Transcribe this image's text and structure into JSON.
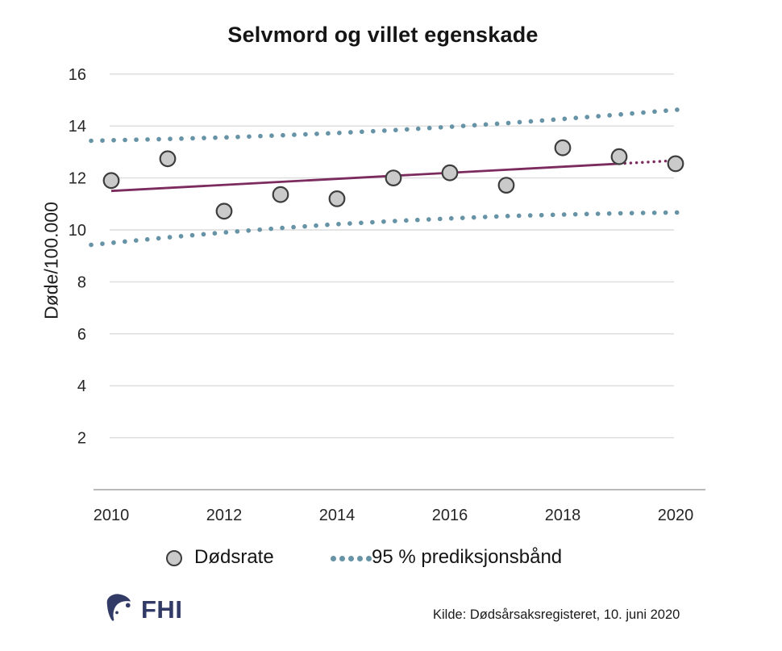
{
  "title": "Selvmord og villet egenskade",
  "legend": {
    "dodsrate_label": "Dødsrate",
    "band_label": "95 % prediksjonsbånd"
  },
  "footer": {
    "logo_text": "FHI",
    "source_text": "Kilde: Dødsårsaksregisteret, 10. juni 2020"
  },
  "colors": {
    "band_blue": "#6793A6",
    "trend_purple": "#7C2B5F",
    "point_fill": "#CACACA",
    "point_stroke": "#3D3D3D",
    "gridline": "#DCDCDC",
    "axis_line": "#B8B8B8",
    "tick_text": "#262626",
    "logo_navy": "#323A66"
  },
  "chart_data": {
    "type": "scatter",
    "title": "Selvmord og villet egenskade",
    "ylabel": "Døde/100.000",
    "xlabel": "",
    "xlim": [
      2009.6,
      2020.1
    ],
    "ylim": [
      0,
      16.6
    ],
    "grid": "horizontal-only",
    "legend_position": "bottom",
    "x_ticks": [
      2010,
      2012,
      2014,
      2016,
      2018,
      2020
    ],
    "y_ticks": [
      2,
      4,
      6,
      8,
      10,
      12,
      14,
      16
    ],
    "years": [
      2010,
      2011,
      2012,
      2013,
      2014,
      2015,
      2016,
      2017,
      2018,
      2019,
      2020
    ],
    "series": [
      {
        "name": "Dødsrate",
        "type": "points",
        "values": [
          11.9,
          12.74,
          10.72,
          11.36,
          11.2,
          12.0,
          12.2,
          11.72,
          13.16,
          12.82,
          12.55
        ]
      },
      {
        "name": "Trendlinje",
        "type": "solid-line",
        "start_year": 2010,
        "start_value": 11.5,
        "end_year": 2019,
        "end_value": 12.55
      },
      {
        "name": "Trend projeksjon",
        "type": "dotted-line",
        "start_year": 2019,
        "start_value": 12.55,
        "end_year": 2020,
        "end_value": 12.67
      },
      {
        "name": "95 % prediksjonsbånd øvre",
        "type": "dotted-band",
        "values": [
          13.45,
          13.5,
          13.56,
          13.64,
          13.73,
          13.84,
          13.97,
          14.11,
          14.27,
          14.44,
          14.62
        ]
      },
      {
        "name": "95 % prediksjonsbånd nedre",
        "type": "dotted-band",
        "values": [
          9.5,
          9.71,
          9.9,
          10.07,
          10.22,
          10.34,
          10.44,
          10.53,
          10.59,
          10.64,
          10.67
        ]
      }
    ]
  }
}
